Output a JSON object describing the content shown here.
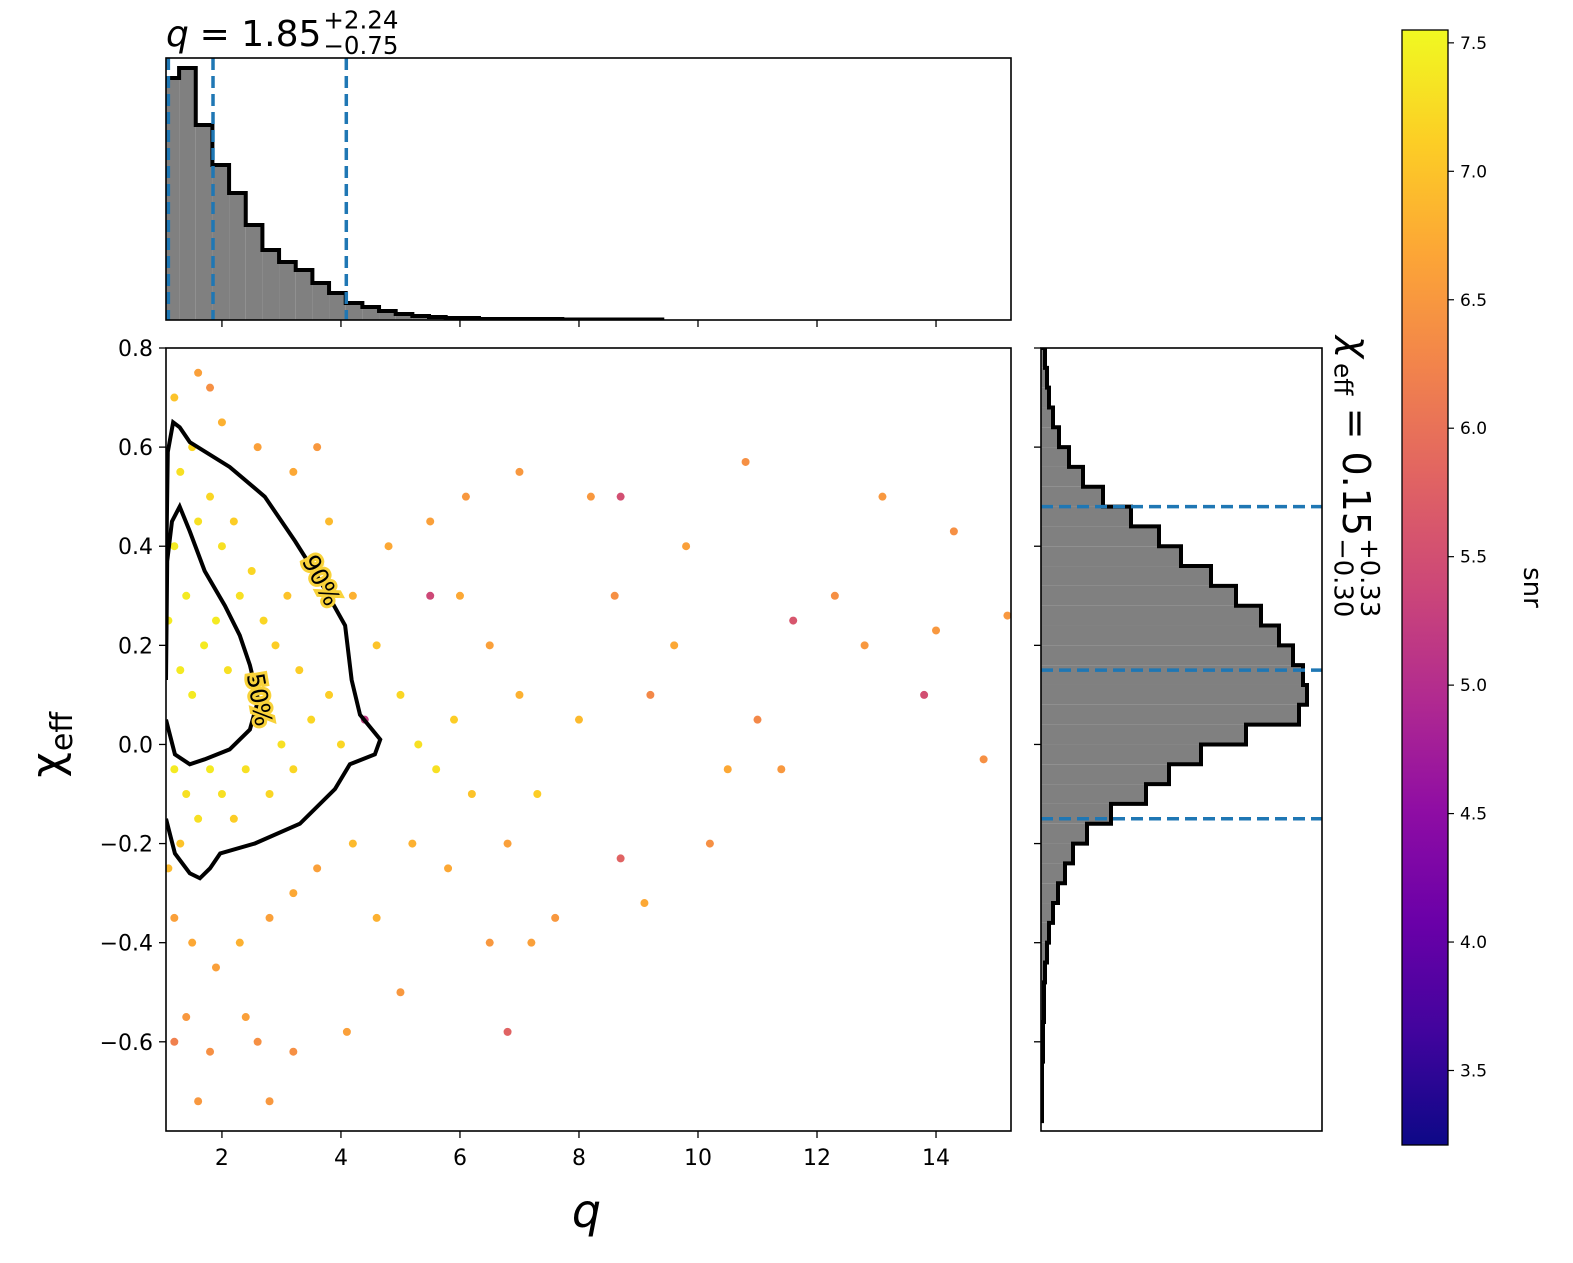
{
  "chart_data": [
    {
      "type": "histogram",
      "orientation": "vertical",
      "title_symbol": "q",
      "title_value": "= 1.85",
      "title_upper": "+2.24",
      "title_lower": "−0.75",
      "bins": [
        1.0,
        1.28,
        1.56,
        1.84,
        2.12,
        2.4,
        2.68,
        2.96,
        3.24,
        3.52,
        3.8,
        4.08,
        4.36,
        4.64,
        4.92,
        5.2,
        5.48,
        5.76,
        6.04,
        6.32,
        6.6,
        6.88,
        7.16,
        7.44,
        7.72,
        8.0,
        8.28,
        8.56,
        8.84,
        9.12,
        9.4
      ],
      "counts": [
        242,
        252,
        195,
        155,
        127,
        95,
        70,
        58,
        50,
        37,
        27,
        17,
        13,
        9,
        6,
        4,
        3,
        2,
        2,
        1,
        1,
        1,
        1,
        1,
        0.5,
        0.5,
        0.5,
        0.5,
        0.5,
        0.5
      ],
      "xlim": [
        1.06,
        15.26
      ],
      "ylim": [
        0,
        262
      ],
      "xticks": [
        2,
        4,
        6,
        8,
        10,
        12,
        14
      ],
      "quantiles": [
        1.1,
        1.85,
        4.09
      ],
      "color": "#808080",
      "edgecolor": "#000000",
      "quantile_color": "#1f77b4"
    },
    {
      "type": "scatter",
      "x_label": "q",
      "y_label": "χ",
      "y_label_sub": "eff",
      "xlim": [
        1.06,
        15.26
      ],
      "ylim": [
        -0.78,
        0.8
      ],
      "xticks": [
        2,
        4,
        6,
        8,
        10,
        12,
        14
      ],
      "yticks": [
        {
          "value": -0.6,
          "label": "−0.6"
        },
        {
          "value": -0.4,
          "label": "−0.4"
        },
        {
          "value": -0.2,
          "label": "−0.2"
        },
        {
          "value": 0,
          "label": "0.0"
        },
        0.2,
        0.4,
        0.6,
        0.8
      ],
      "x": [
        1.2,
        1.5,
        1.9,
        2.3,
        2.8,
        3.2,
        3.6,
        4.2,
        1.4,
        1.8,
        2.4,
        1.6,
        2.6,
        1.2,
        4.2,
        4.6,
        4.8,
        3.8,
        3.2,
        2.6,
        2.0,
        1.6,
        1.8,
        3.6,
        5.0,
        5.3,
        5.6,
        5.9,
        6.2,
        5.2,
        5.8,
        4.6,
        5.0,
        6.0,
        6.5,
        7.0,
        7.3,
        6.8,
        5.5,
        6.1,
        7.0,
        8.2,
        8.7,
        5.5,
        4.4,
        6.5,
        7.2,
        6.8,
        8.6,
        9.2,
        9.6,
        10.2,
        10.8,
        11.6,
        11.0,
        11.4,
        12.3,
        12.8,
        13.1,
        13.8,
        14.0,
        14.3,
        14.8,
        15.2,
        9.1,
        8.7,
        4.1,
        3.2,
        2.8,
        10.5,
        9.8,
        8.0,
        7.6,
        1.2,
        1.3,
        1.5,
        1.2,
        1.4,
        1.6,
        1.8,
        2.0,
        2.2,
        1.3,
        1.5,
        1.7,
        1.9,
        2.1,
        2.3,
        2.5,
        2.7,
        2.9,
        3.1,
        3.3,
        3.5,
        3.8,
        4.0,
        1.2,
        1.4,
        1.6,
        1.8,
        2.0,
        2.4,
        2.8,
        3.0,
        3.2,
        2.6,
        2.2,
        1.3,
        1.1,
        1.1
      ],
      "y": [
        -0.35,
        -0.4,
        -0.45,
        -0.4,
        -0.35,
        -0.3,
        -0.25,
        -0.2,
        -0.55,
        -0.62,
        -0.55,
        -0.72,
        -0.6,
        -0.6,
        0.3,
        0.2,
        0.4,
        0.45,
        0.55,
        0.6,
        0.65,
        0.75,
        0.72,
        0.6,
        0.1,
        0.0,
        -0.05,
        0.05,
        -0.1,
        -0.2,
        -0.25,
        -0.35,
        -0.5,
        0.3,
        0.2,
        0.1,
        -0.1,
        -0.2,
        0.45,
        0.5,
        0.55,
        0.5,
        0.5,
        0.3,
        0.05,
        -0.4,
        -0.4,
        -0.58,
        0.3,
        0.1,
        0.2,
        -0.2,
        0.57,
        0.25,
        0.05,
        -0.05,
        0.3,
        0.2,
        0.5,
        0.1,
        0.23,
        0.43,
        -0.03,
        0.26,
        -0.32,
        -0.23,
        -0.58,
        -0.62,
        -0.72,
        -0.05,
        0.4,
        0.05,
        -0.35,
        0.7,
        0.55,
        0.6,
        0.4,
        0.3,
        0.45,
        0.5,
        0.4,
        0.45,
        0.15,
        0.1,
        0.2,
        0.25,
        0.15,
        0.3,
        0.35,
        0.25,
        0.2,
        0.3,
        0.15,
        0.05,
        0.1,
        0.0,
        -0.05,
        -0.1,
        -0.15,
        -0.05,
        -0.1,
        -0.05,
        -0.1,
        0.0,
        -0.05,
        0.05,
        -0.15,
        -0.2,
        0.25,
        -0.25
      ],
      "snr": [
        6.6,
        6.7,
        6.6,
        6.8,
        6.6,
        6.7,
        6.6,
        6.9,
        6.5,
        6.4,
        6.6,
        6.5,
        6.4,
        6.2,
        6.8,
        7.0,
        6.7,
        6.9,
        6.7,
        6.6,
        6.8,
        6.6,
        6.4,
        6.5,
        7.2,
        7.3,
        7.3,
        7.1,
        7.0,
        6.8,
        6.7,
        6.8,
        6.5,
        6.7,
        6.6,
        6.8,
        7.1,
        6.6,
        6.6,
        6.5,
        6.5,
        6.5,
        5.5,
        5.4,
        5.2,
        6.5,
        6.6,
        5.8,
        6.4,
        6.3,
        6.7,
        6.4,
        6.4,
        5.6,
        6.3,
        6.5,
        6.4,
        6.5,
        6.5,
        5.5,
        6.5,
        6.4,
        6.4,
        6.5,
        6.7,
        5.8,
        6.6,
        6.4,
        6.5,
        6.7,
        6.6,
        6.9,
        6.5,
        7.0,
        7.3,
        7.2,
        7.4,
        7.4,
        7.3,
        7.2,
        7.3,
        7.1,
        7.4,
        7.4,
        7.4,
        7.4,
        7.3,
        7.3,
        7.2,
        7.2,
        7.1,
        7.0,
        7.1,
        7.2,
        7.1,
        7.2,
        7.4,
        7.3,
        7.3,
        7.4,
        7.3,
        7.3,
        7.2,
        7.3,
        7.2,
        7.4,
        7.1,
        7.0,
        7.4,
        6.9
      ],
      "contours": [
        {
          "label": "90%",
          "x": [
            1.06,
            1.09,
            1.18,
            1.29,
            1.46,
            2.13,
            2.72,
            3.23,
            3.65,
            4.07,
            4.18,
            4.32,
            4.66,
            4.57,
            4.15,
            3.9,
            3.31,
            2.55,
            1.97,
            1.8,
            1.63,
            1.46,
            1.21,
            1.06
          ],
          "y": [
            0.33,
            0.59,
            0.65,
            0.64,
            0.61,
            0.56,
            0.5,
            0.41,
            0.33,
            0.24,
            0.13,
            0.06,
            0.01,
            -0.02,
            -0.04,
            -0.09,
            -0.16,
            -0.2,
            -0.22,
            -0.25,
            -0.27,
            -0.26,
            -0.22,
            -0.15
          ]
        },
        {
          "label": "50%",
          "x": [
            1.06,
            1.08,
            1.16,
            1.29,
            1.46,
            1.71,
            2.05,
            2.3,
            2.47,
            2.61,
            2.47,
            2.13,
            1.71,
            1.46,
            1.21,
            1.06
          ],
          "y": [
            0.13,
            0.37,
            0.45,
            0.48,
            0.43,
            0.35,
            0.28,
            0.22,
            0.16,
            0.09,
            0.03,
            -0.01,
            -0.03,
            -0.04,
            -0.02,
            0.05
          ]
        }
      ],
      "contour_color": "#000000"
    },
    {
      "type": "histogram",
      "orientation": "horizontal",
      "title_symbol": "χ",
      "title_symbol_sub": "eff",
      "title_value": "= 0.15",
      "title_upper": "+0.33",
      "title_lower": "−0.30",
      "bins": [
        -0.76,
        -0.72,
        -0.68,
        -0.64,
        -0.6,
        -0.56,
        -0.52,
        -0.48,
        -0.44,
        -0.4,
        -0.36,
        -0.32,
        -0.28,
        -0.24,
        -0.2,
        -0.16,
        -0.12,
        -0.08,
        -0.04,
        0.0,
        0.04,
        0.08,
        0.12,
        0.16,
        0.2,
        0.24,
        0.28,
        0.32,
        0.36,
        0.4,
        0.44,
        0.48,
        0.52,
        0.56,
        0.6,
        0.64,
        0.68,
        0.72,
        0.76,
        0.8
      ],
      "counts": [
        1,
        1,
        1,
        2,
        2,
        3,
        3,
        4,
        6,
        8,
        12,
        17,
        24,
        32,
        46,
        70,
        105,
        128,
        160,
        205,
        258,
        266,
        262,
        252,
        238,
        220,
        195,
        170,
        140,
        118,
        90,
        62,
        42,
        28,
        18,
        12,
        8,
        6,
        4
      ],
      "xlim": [
        0,
        281
      ],
      "ylim": [
        -0.78,
        0.8
      ],
      "yticks": [
        -0.6,
        -0.4,
        -0.2,
        0,
        0.2,
        0.4,
        0.6,
        0.8
      ],
      "quantiles": [
        -0.15,
        0.15,
        0.48
      ],
      "color": "#808080",
      "edgecolor": "#000000",
      "quantile_color": "#1f77b4"
    },
    {
      "type": "colorbar",
      "label": "snr",
      "cmap": "plasma",
      "clim": [
        3.21,
        7.55
      ],
      "ticks": [
        3.5,
        {
          "value": 4,
          "label": "4.0"
        },
        4.5,
        {
          "value": 5,
          "label": "5.0"
        },
        5.5,
        {
          "value": 6,
          "label": "6.0"
        },
        6.5,
        {
          "value": 7,
          "label": "7.0"
        },
        7.5
      ]
    }
  ]
}
